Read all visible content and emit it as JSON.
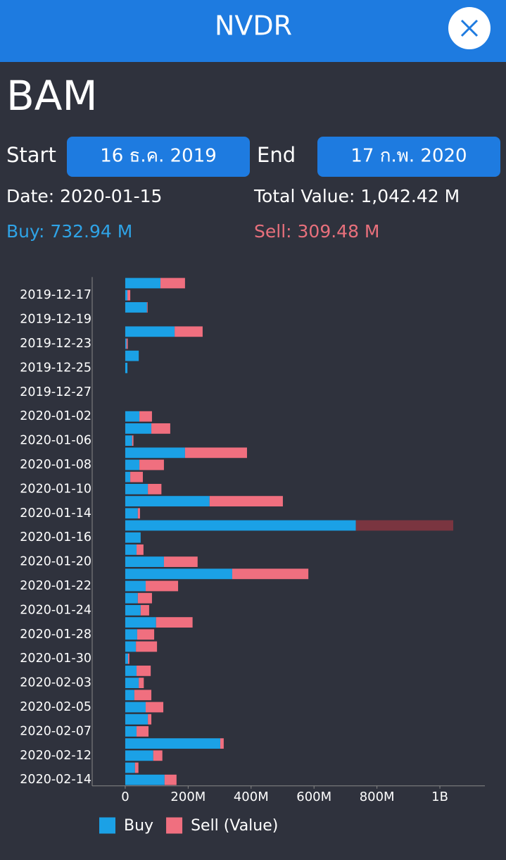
{
  "header": {
    "title": "NVDR"
  },
  "symbol": "BAM",
  "range": {
    "start_label": "Start",
    "start_value": "16 ธ.ค. 2019",
    "end_label": "End",
    "end_value": "17 ก.พ. 2020"
  },
  "info": {
    "date": "Date: 2020-01-15",
    "total": "Total Value: 1,042.42 M",
    "buy": "Buy: 732.94 M",
    "sell": "Sell: 309.48 M"
  },
  "chart_data": {
    "type": "hbar_stacked",
    "categories": [
      null,
      "2019-12-17",
      null,
      "2019-12-19",
      null,
      "2019-12-23",
      null,
      "2019-12-25",
      null,
      "2019-12-27",
      null,
      "2020-01-02",
      null,
      "2020-01-06",
      null,
      "2020-01-08",
      null,
      "2020-01-10",
      null,
      "2020-01-14",
      null,
      "2020-01-16",
      null,
      "2020-01-20",
      null,
      "2020-01-22",
      null,
      "2020-01-24",
      null,
      "2020-01-28",
      null,
      "2020-01-30",
      null,
      "2020-02-03",
      null,
      "2020-02-05",
      null,
      "2020-02-07",
      null,
      "2020-02-12",
      null,
      "2020-02-14"
    ],
    "series": [
      {
        "name": "Buy",
        "color": "#1ba1e6",
        "values": [
          112,
          7,
          69,
          0,
          157,
          4,
          43,
          7,
          0,
          0,
          0,
          45,
          83,
          22,
          190,
          45,
          16,
          72,
          268,
          40,
          732.94,
          49,
          36,
          123,
          340,
          65,
          40,
          49,
          98,
          38,
          34,
          9,
          36,
          43,
          29,
          65,
          72,
          36,
          302,
          89,
          31,
          125
        ]
      },
      {
        "name": "Sell (Value)",
        "color": "#f06f7f",
        "values": [
          78,
          9,
          2,
          0,
          89,
          4,
          0,
          0,
          0,
          0,
          0,
          40,
          60,
          4,
          197,
          78,
          40,
          43,
          233,
          7,
          309.48,
          0,
          22,
          107,
          242,
          103,
          45,
          27,
          116,
          54,
          67,
          4,
          45,
          16,
          54,
          56,
          11,
          38,
          11,
          29,
          11,
          38
        ]
      }
    ],
    "selected_index": 20,
    "selected_color": "#7a3540",
    "xlim": [
      -105,
      1143
    ],
    "xticks": [
      0,
      {
        "value": 200,
        "label": "200M"
      },
      {
        "value": 400,
        "label": "400M"
      },
      {
        "value": 600,
        "label": "600M"
      },
      {
        "value": 800,
        "label": "800M"
      },
      {
        "value": 1000,
        "label": "1B"
      }
    ],
    "legend": "bottom-left"
  }
}
